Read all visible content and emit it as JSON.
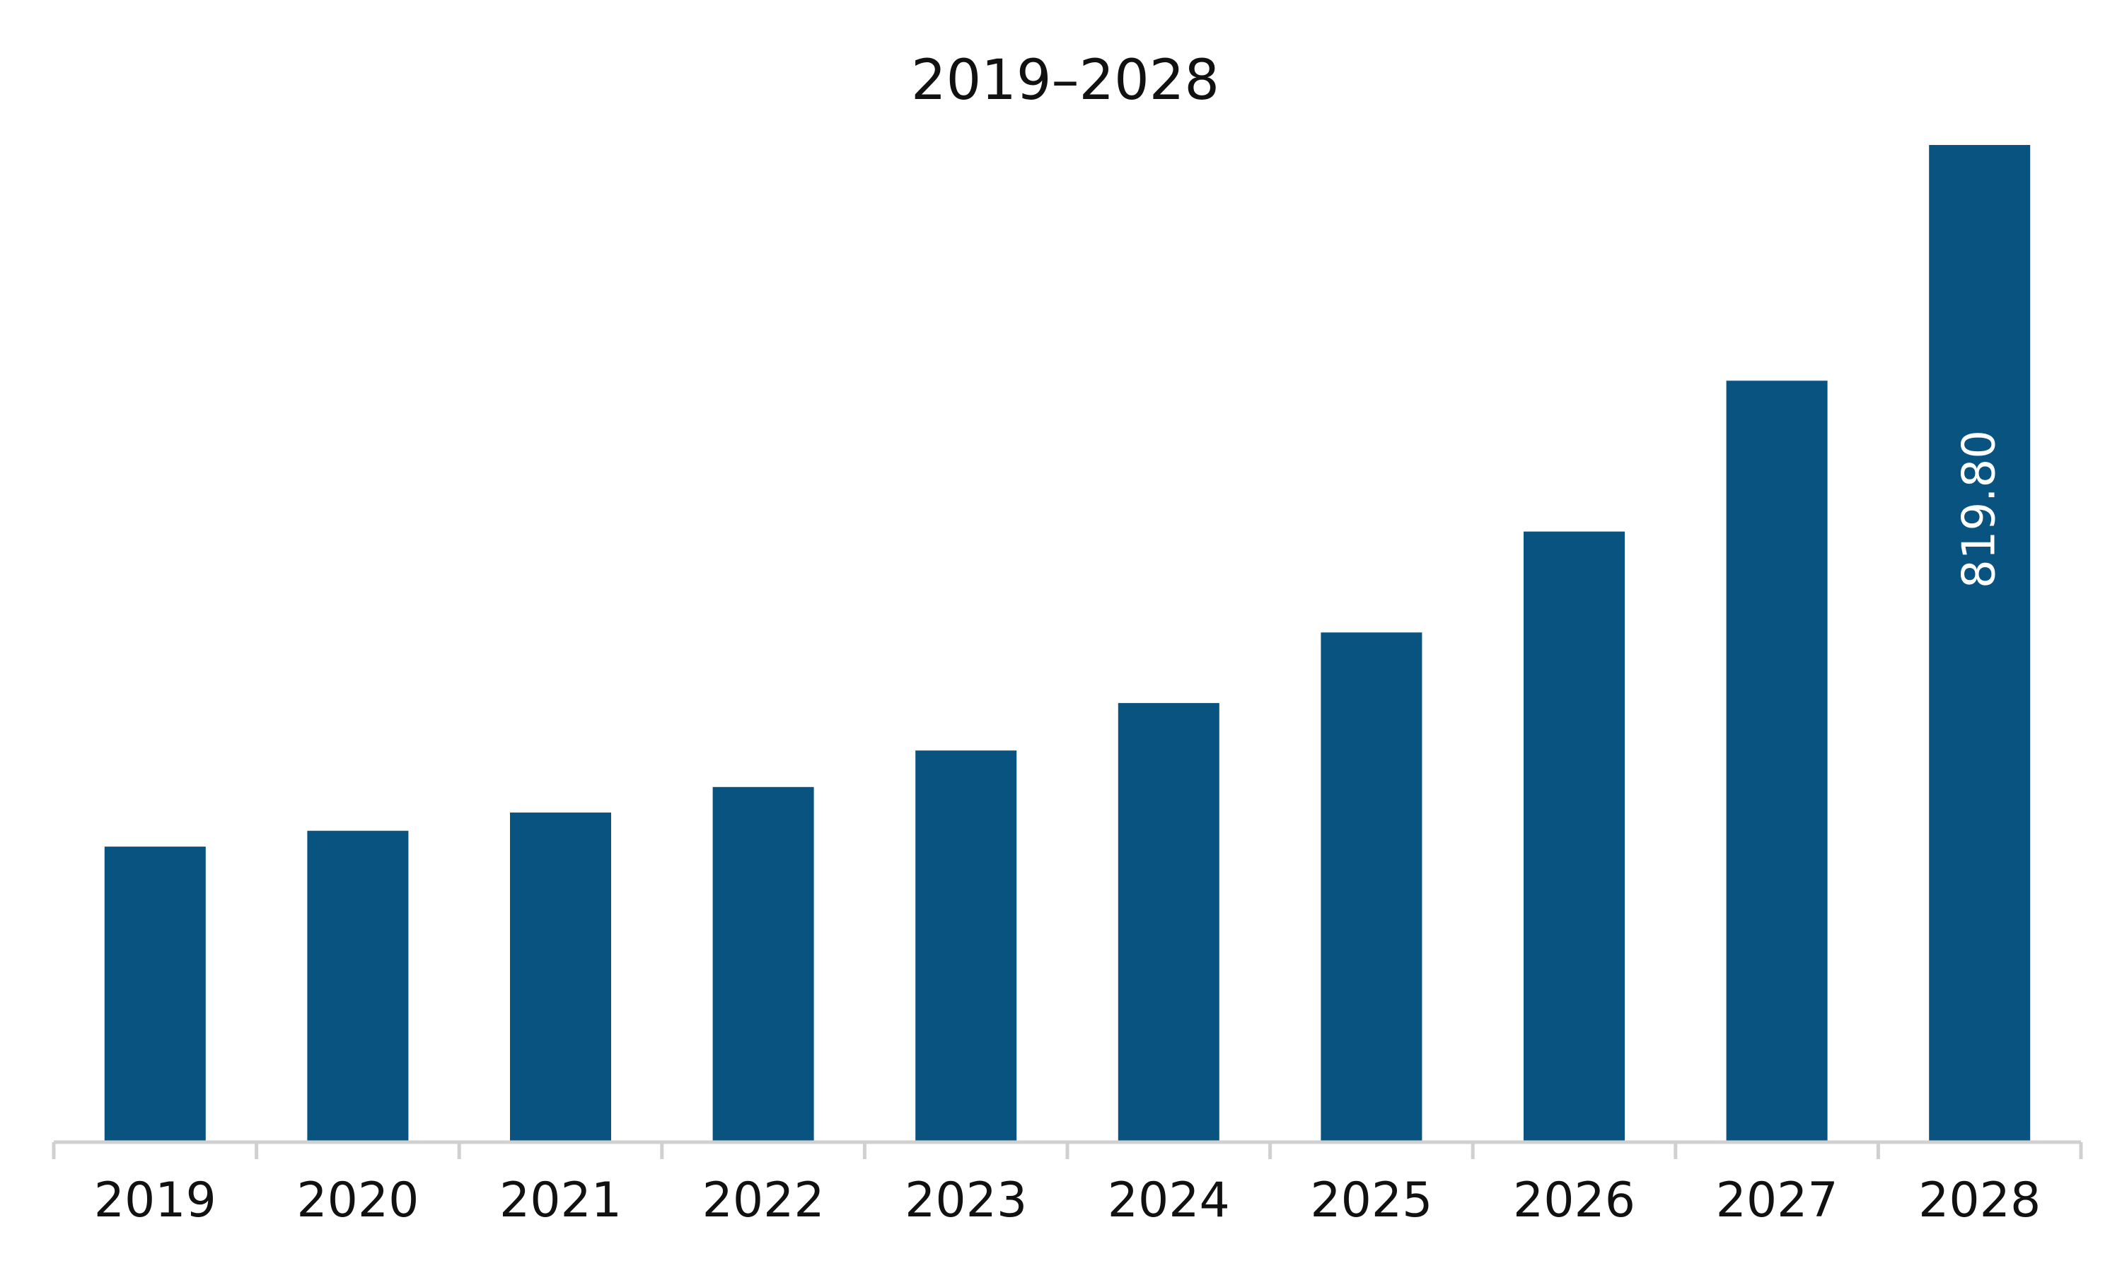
{
  "chart_data": {
    "type": "bar",
    "title": "2019–2028",
    "xlabel": "",
    "ylabel": "",
    "categories": [
      "2019",
      "2020",
      "2021",
      "2022",
      "2023",
      "2024",
      "2025",
      "2026",
      "2027",
      "2028"
    ],
    "values": [
      243,
      256,
      271,
      292,
      322,
      361,
      419,
      502,
      626,
      819.8
    ],
    "data_labels": [
      {
        "category": "2028",
        "text": "819.80"
      }
    ],
    "ylim": [
      0,
      819.8
    ],
    "grid": false,
    "legend": "none",
    "bar_color": "#08537f",
    "axis_color": "#d0d0d0"
  }
}
